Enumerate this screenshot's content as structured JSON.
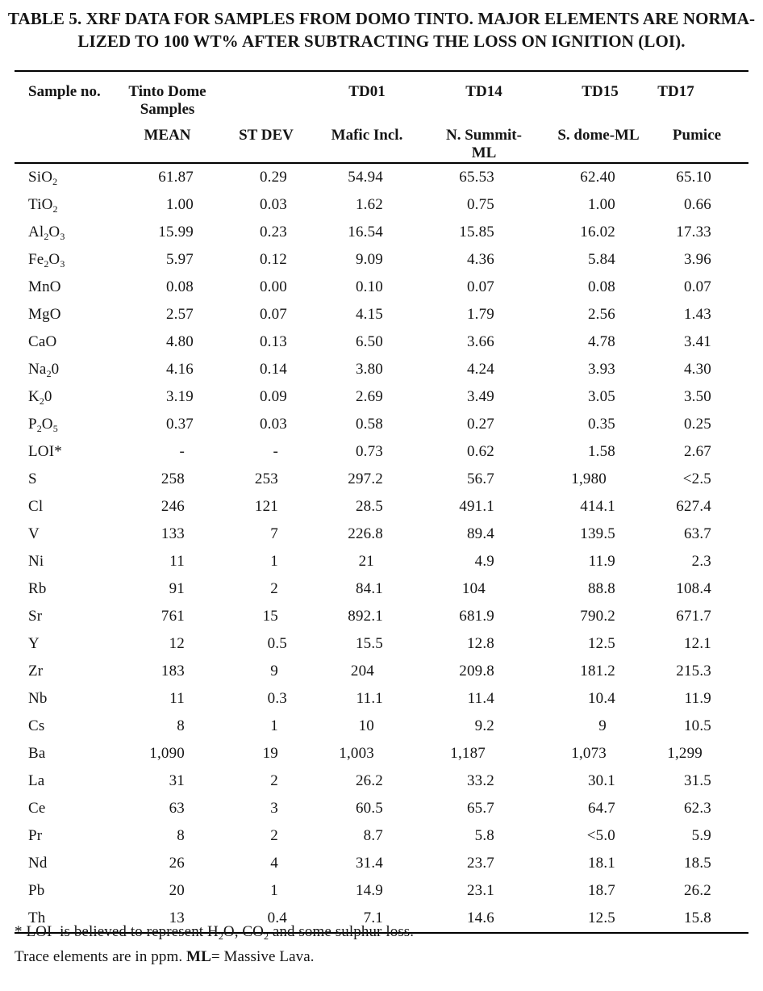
{
  "page": {
    "background": "#ffffff",
    "text_color": "#151515",
    "rule_color": "#000000"
  },
  "title": {
    "line1": "TABLE 5. XRF DATA FOR SAMPLES FROM DOMO TINTO. MAJOR ELEMENTS ARE NORMA-",
    "line2": "LIZED TO 100 WT% AFTER SUBTRACTING THE LOSS ON IGNITION (LOI)."
  },
  "table": {
    "header": {
      "sample_no": "Sample no.",
      "group_line1": "Tinto Dome",
      "group_line2": "Samples",
      "sample_ids": [
        "TD01",
        "TD14",
        "TD15",
        "TD17"
      ],
      "stat_headers": [
        "MEAN",
        "ST DEV"
      ],
      "sample_types": [
        "Mafic Incl.",
        "N. Summit-ML",
        "S. dome-ML",
        "Pumice"
      ]
    },
    "rows": [
      {
        "label": [
          [
            "SiO"
          ],
          [
            "2",
            "sub"
          ]
        ],
        "values": [
          "61.87",
          "0.29",
          "54.94",
          "65.53",
          "62.40",
          "65.10"
        ]
      },
      {
        "label": [
          [
            "TiO"
          ],
          [
            "2",
            "sub"
          ]
        ],
        "values": [
          "1.00",
          "0.03",
          "1.62",
          "0.75",
          "1.00",
          "0.66"
        ]
      },
      {
        "label": [
          [
            "Al"
          ],
          [
            "2",
            "sub"
          ],
          [
            "O"
          ],
          [
            "3",
            "sub"
          ]
        ],
        "values": [
          "15.99",
          "0.23",
          "16.54",
          "15.85",
          "16.02",
          "17.33"
        ]
      },
      {
        "label": [
          [
            "Fe"
          ],
          [
            "2",
            "sub"
          ],
          [
            "O"
          ],
          [
            "3",
            "sub"
          ]
        ],
        "values": [
          "5.97",
          "0.12",
          "9.09",
          "4.36",
          "5.84",
          "3.96"
        ]
      },
      {
        "label": [
          [
            "MnO"
          ]
        ],
        "values": [
          "0.08",
          "0.00",
          "0.10",
          "0.07",
          "0.08",
          "0.07"
        ]
      },
      {
        "label": [
          [
            "MgO"
          ]
        ],
        "values": [
          "2.57",
          "0.07",
          "4.15",
          "1.79",
          "2.56",
          "1.43"
        ]
      },
      {
        "label": [
          [
            "CaO"
          ]
        ],
        "values": [
          "4.80",
          "0.13",
          "6.50",
          "3.66",
          "4.78",
          "3.41"
        ]
      },
      {
        "label": [
          [
            "Na"
          ],
          [
            "2",
            "sub"
          ],
          [
            "0"
          ]
        ],
        "values": [
          "4.16",
          "0.14",
          "3.80",
          "4.24",
          "3.93",
          "4.30"
        ]
      },
      {
        "label": [
          [
            "K"
          ],
          [
            "2",
            "sub"
          ],
          [
            "0"
          ]
        ],
        "values": [
          "3.19",
          "0.09",
          "2.69",
          "3.49",
          "3.05",
          "3.50"
        ]
      },
      {
        "label": [
          [
            "P"
          ],
          [
            "2",
            "sub"
          ],
          [
            "O"
          ],
          [
            "5",
            "sub"
          ]
        ],
        "values": [
          "0.37",
          "0.03",
          "0.58",
          "0.27",
          "0.35",
          "0.25"
        ]
      },
      {
        "label": [
          [
            "LOI*"
          ]
        ],
        "values": [
          "-",
          "-",
          "0.73",
          "0.62",
          "1.58",
          "2.67"
        ]
      },
      {
        "label": [
          [
            "S"
          ]
        ],
        "values": [
          "258",
          "253",
          "297.2",
          "56.7",
          "1,980",
          "<2.5"
        ]
      },
      {
        "label": [
          [
            "Cl"
          ]
        ],
        "values": [
          "246",
          "121",
          "28.5",
          "491.1",
          "414.1",
          "627.4"
        ]
      },
      {
        "label": [
          [
            "V"
          ]
        ],
        "values": [
          "133",
          "7",
          "226.8",
          "89.4",
          "139.5",
          "63.7"
        ]
      },
      {
        "label": [
          [
            "Ni"
          ]
        ],
        "values": [
          "11",
          "1",
          "21",
          "4.9",
          "11.9",
          "2.3"
        ]
      },
      {
        "label": [
          [
            "Rb"
          ]
        ],
        "values": [
          "91",
          "2",
          "84.1",
          "104",
          "88.8",
          "108.4"
        ]
      },
      {
        "label": [
          [
            "Sr"
          ]
        ],
        "values": [
          "761",
          "15",
          "892.1",
          "681.9",
          "790.2",
          "671.7"
        ]
      },
      {
        "label": [
          [
            "Y"
          ]
        ],
        "values": [
          "12",
          "0.5",
          "15.5",
          "12.8",
          "12.5",
          "12.1"
        ]
      },
      {
        "label": [
          [
            "Zr"
          ]
        ],
        "values": [
          "183",
          "9",
          "204",
          "209.8",
          "181.2",
          "215.3"
        ]
      },
      {
        "label": [
          [
            "Nb"
          ]
        ],
        "values": [
          "11",
          "0.3",
          "11.1",
          "11.4",
          "10.4",
          "11.9"
        ]
      },
      {
        "label": [
          [
            "Cs"
          ]
        ],
        "values": [
          "8",
          "1",
          "10",
          "9.2",
          "9",
          "10.5"
        ]
      },
      {
        "label": [
          [
            "Ba"
          ]
        ],
        "values": [
          "1,090",
          "19",
          "1,003",
          "1,187",
          "1,073",
          "1,299"
        ]
      },
      {
        "label": [
          [
            "La"
          ]
        ],
        "values": [
          "31",
          "2",
          "26.2",
          "33.2",
          "30.1",
          "31.5"
        ]
      },
      {
        "label": [
          [
            "Ce"
          ]
        ],
        "values": [
          "63",
          "3",
          "60.5",
          "65.7",
          "64.7",
          "62.3"
        ]
      },
      {
        "label": [
          [
            "Pr"
          ]
        ],
        "values": [
          "8",
          "2",
          "8.7",
          "5.8",
          "<5.0",
          "5.9"
        ]
      },
      {
        "label": [
          [
            "Nd"
          ]
        ],
        "values": [
          "26",
          "4",
          "31.4",
          "23.7",
          "18.1",
          "18.5"
        ]
      },
      {
        "label": [
          [
            "Pb"
          ]
        ],
        "values": [
          "20",
          "1",
          "14.9",
          "23.1",
          "18.7",
          "26.2"
        ]
      },
      {
        "label": [
          [
            "Th"
          ]
        ],
        "values": [
          "13",
          "0.4",
          "7.1",
          "14.6",
          "12.5",
          "15.8"
        ]
      }
    ]
  },
  "footnotes": [
    [
      [
        "* LOI  is believed to represent H"
      ],
      [
        "2",
        "sub"
      ],
      [
        "O, CO"
      ],
      [
        "2",
        "sub"
      ],
      [
        " and some sulphur loss."
      ]
    ],
    [
      [
        "Trace elements are in ppm. "
      ],
      [
        "ML",
        "b"
      ],
      [
        "= Massive Lava."
      ]
    ]
  ]
}
